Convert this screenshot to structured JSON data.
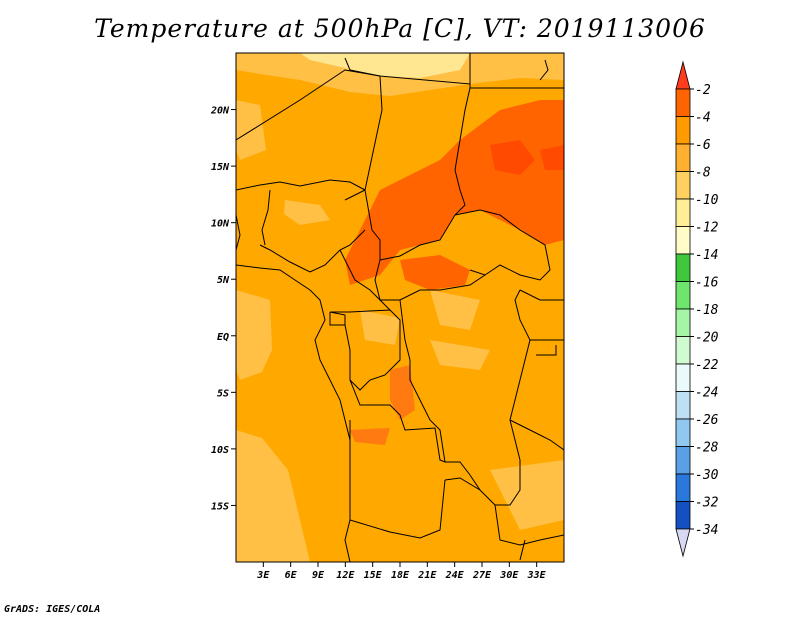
{
  "title": "Temperature at 500hPa [C], VT: 2019113006",
  "credit": "GrADS: IGES/COLA",
  "map": {
    "variable": "Temperature at 500hPa",
    "units": "C",
    "valid_time": "2019113006",
    "lon_range": [
      0,
      36
    ],
    "lat_range": [
      -20,
      25
    ],
    "x_ticks": [
      "3E",
      "6E",
      "9E",
      "12E",
      "15E",
      "18E",
      "21E",
      "24E",
      "27E",
      "30E",
      "33E"
    ],
    "y_ticks": [
      "20N",
      "15N",
      "10N",
      "5N",
      "EQ",
      "5S",
      "10S",
      "15S"
    ]
  },
  "colorbar": {
    "labels": [
      "-2",
      "-4",
      "-6",
      "-8",
      "-10",
      "-12",
      "-14",
      "-16",
      "-18",
      "-20",
      "-22",
      "-24",
      "-26",
      "-28",
      "-30",
      "-32",
      "-34"
    ],
    "colors": [
      "#ff6400",
      "#ff9a00",
      "#ffb030",
      "#ffd060",
      "#ffee98",
      "#fffcc8",
      "#3ec83e",
      "#6ee66e",
      "#a4f5a4",
      "#d0fad0",
      "#eafafa",
      "#bde0f5",
      "#90c8f0",
      "#5aa0e6",
      "#2a78dc",
      "#1450c0",
      "#0a2ca0",
      "#061a6e"
    ],
    "top_arrow_color": "#ff3c1e",
    "bottom_arrow_color": "#d8d8f4"
  },
  "colors": {
    "background_warm": "#ffa800",
    "warmer": "#ff6400",
    "cooler": "#ffc045",
    "coolest": "#ffe690",
    "border": "#000000"
  }
}
